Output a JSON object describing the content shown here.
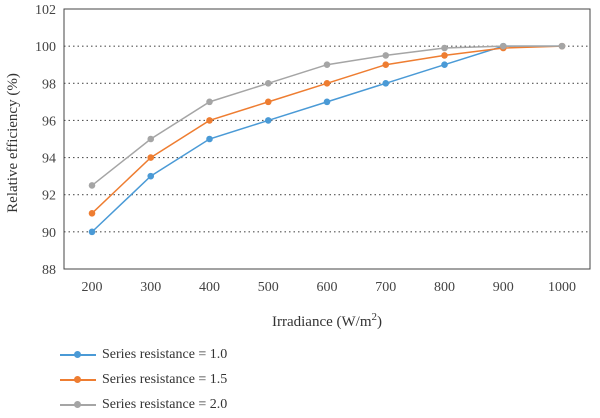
{
  "chart_data": {
    "type": "line",
    "xlabel": "Irradiance (W/m",
    "xlabel_sup": "2",
    "xlabel_suffix": ")",
    "ylabel": "Relative efficiency (%)",
    "x": [
      200,
      300,
      400,
      500,
      600,
      700,
      800,
      900,
      1000
    ],
    "xlim": [
      200,
      1000
    ],
    "ylim": [
      88,
      102
    ],
    "yticks": [
      88,
      90,
      92,
      94,
      96,
      98,
      100,
      102
    ],
    "grid": "horizontal-dotted",
    "legend_position": "bottom-left",
    "series": [
      {
        "name": "Series resistance = 1.0",
        "color": "#4a9ad6",
        "values": [
          90,
          93,
          95,
          96,
          97,
          98,
          99,
          100,
          100
        ]
      },
      {
        "name": "Series resistance = 1.5",
        "color": "#ee7d31",
        "values": [
          91,
          94,
          96,
          97,
          98,
          99,
          99.5,
          99.9,
          100
        ]
      },
      {
        "name": "Series resistance = 2.0",
        "color": "#a5a5a5",
        "values": [
          92.5,
          95,
          97,
          98,
          99,
          99.5,
          99.9,
          100,
          100
        ]
      }
    ]
  }
}
